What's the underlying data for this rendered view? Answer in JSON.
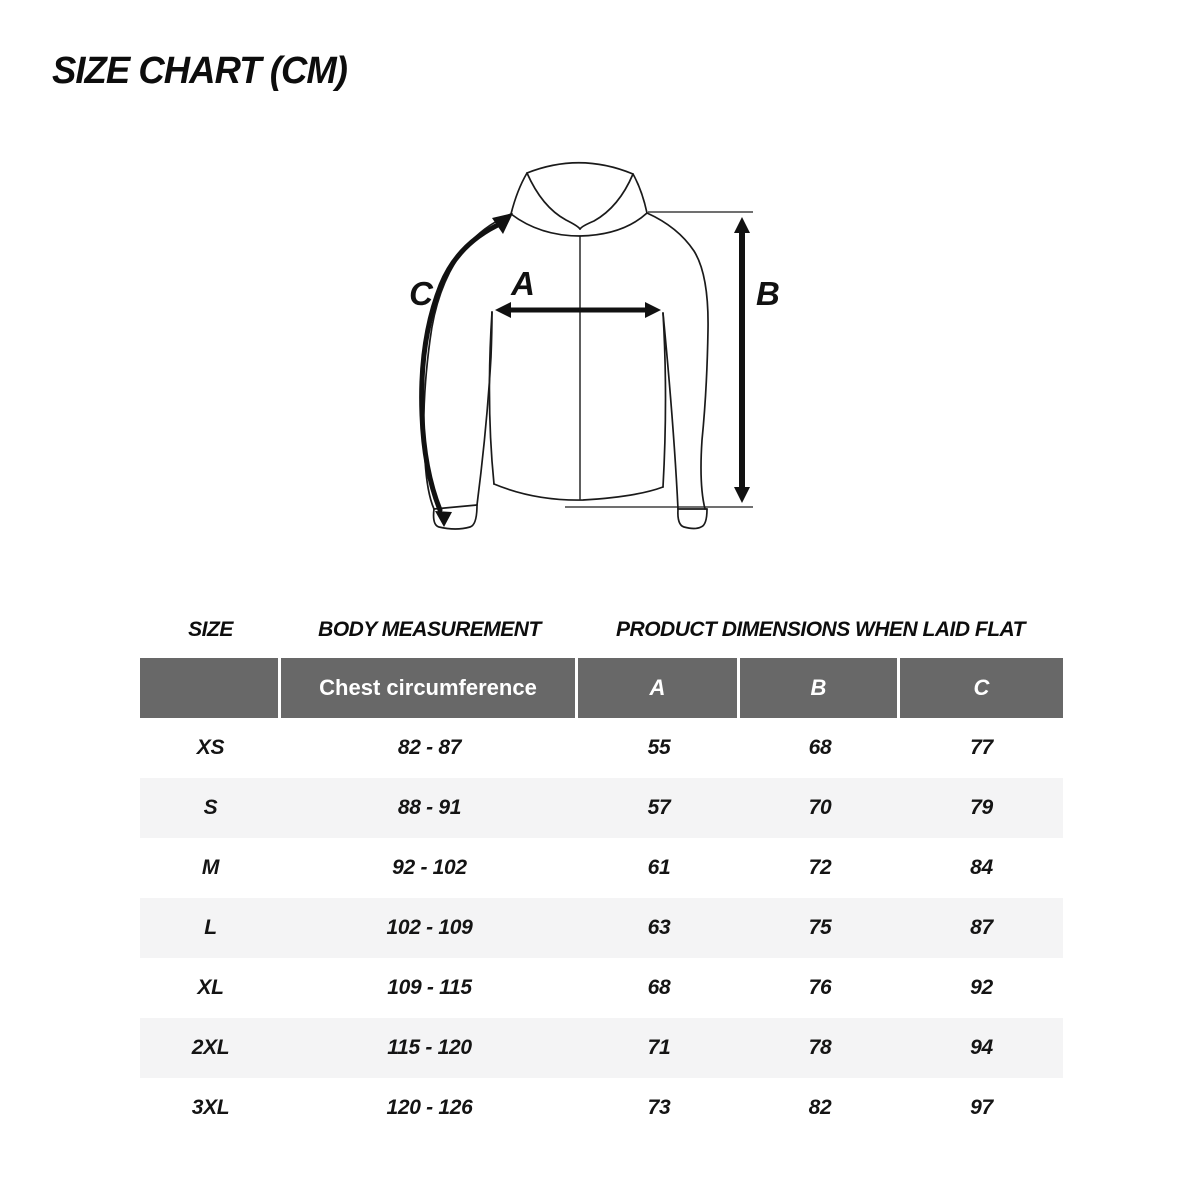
{
  "title": "SIZE CHART (CM)",
  "diagram": {
    "description": "hooded-jacket-measurement-drawing",
    "measure_labels": {
      "a": "A",
      "b": "B",
      "c": "C"
    }
  },
  "table": {
    "group_headers": [
      "SIZE",
      "BODY MEASUREMENT",
      "PRODUCT DIMENSIONS WHEN LAID FLAT"
    ],
    "sub_headers": {
      "size": "",
      "chest": "Chest circumference",
      "a": "A",
      "b": "B",
      "c": "C"
    },
    "rows": [
      {
        "size": "XS",
        "chest": "82 - 87",
        "a": "55",
        "b": "68",
        "c": "77"
      },
      {
        "size": "S",
        "chest": "88 - 91",
        "a": "57",
        "b": "70",
        "c": "79"
      },
      {
        "size": "M",
        "chest": "92 - 102",
        "a": "61",
        "b": "72",
        "c": "84"
      },
      {
        "size": "L",
        "chest": "102 - 109",
        "a": "63",
        "b": "75",
        "c": "87"
      },
      {
        "size": "XL",
        "chest": "109 - 115",
        "a": "68",
        "b": "76",
        "c": "92"
      },
      {
        "size": "2XL",
        "chest": "115 - 120",
        "a": "71",
        "b": "78",
        "c": "94"
      },
      {
        "size": "3XL",
        "chest": "120 - 126",
        "a": "73",
        "b": "82",
        "c": "97"
      }
    ],
    "colors": {
      "header_bg": "#686868",
      "header_text": "#ffffff",
      "stripe_bg": "#f4f4f5",
      "text": "#141414"
    }
  }
}
